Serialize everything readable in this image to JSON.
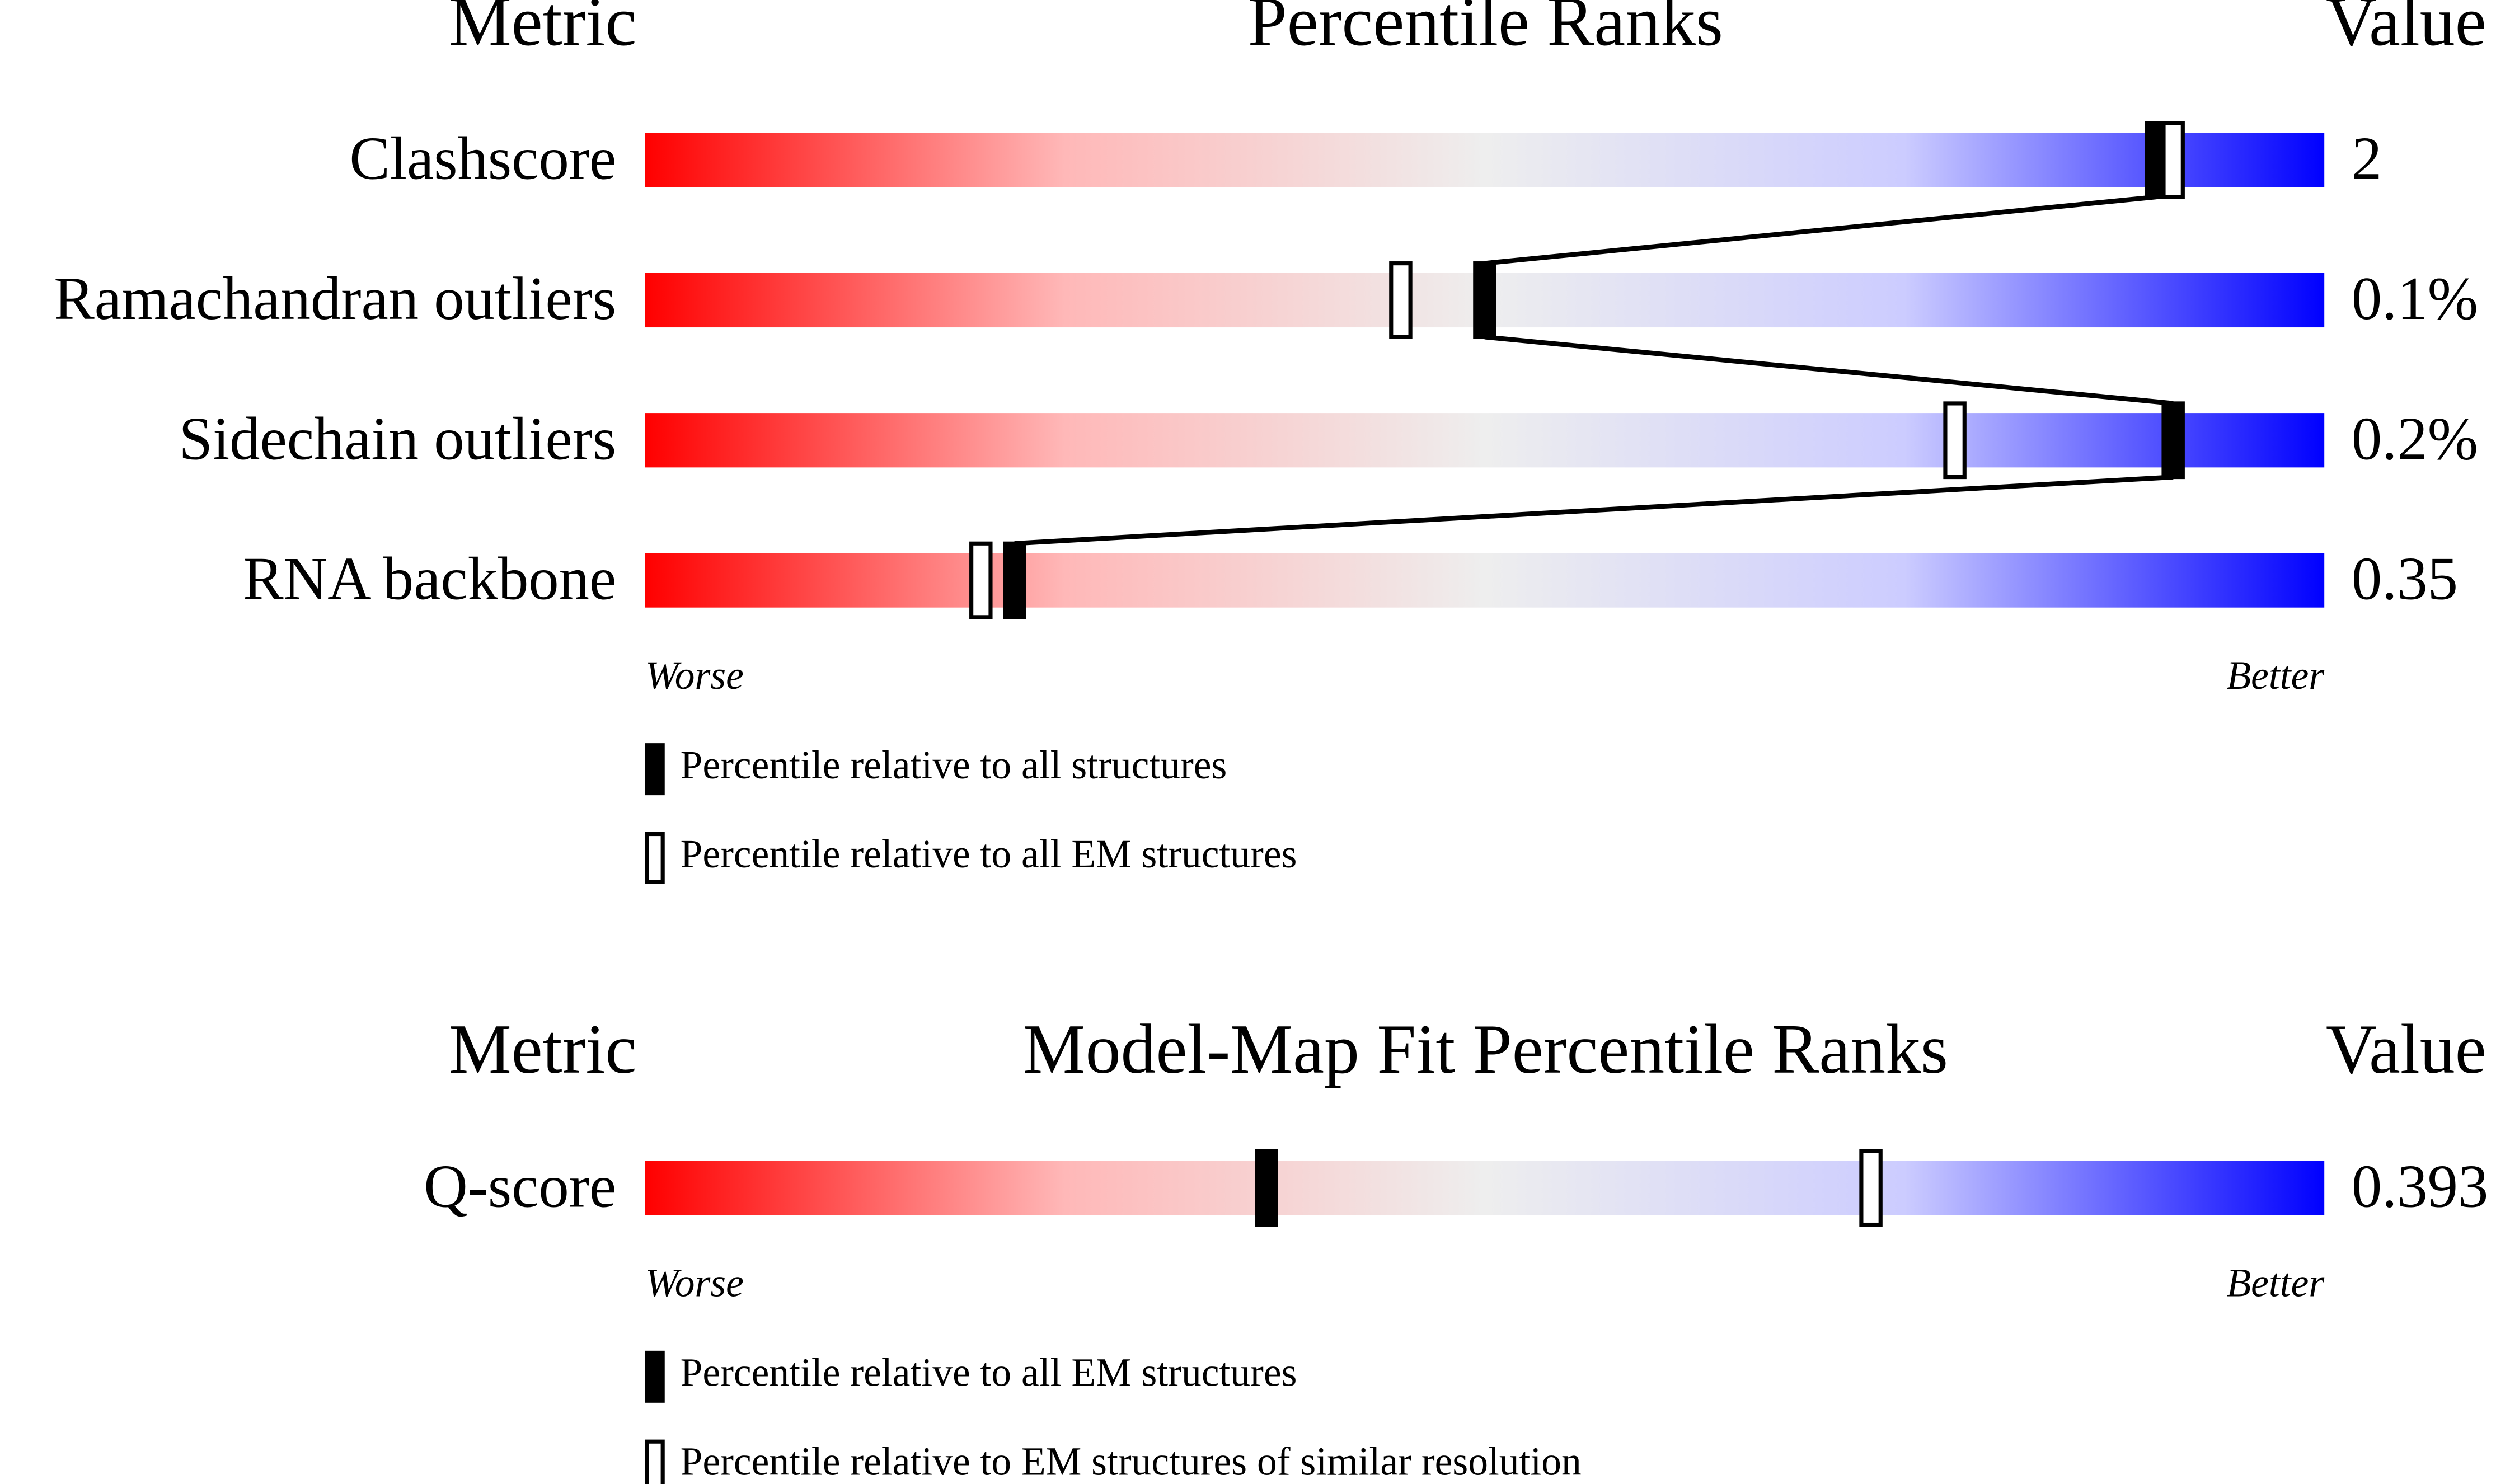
{
  "chart_data": [
    {
      "type": "percentile-slider",
      "metric_header": "Metric",
      "title": "Percentile Ranks",
      "value_header": "Value",
      "categories": [
        "Clashscore",
        "Ramachandran outliers",
        "Sidechain outliers",
        "RNA backbone"
      ],
      "value_texts": [
        "2",
        "0.1%",
        "0.2%",
        "0.35"
      ],
      "series": [
        {
          "name": "Percentile relative to all structures",
          "color": "#000000",
          "values": [
            90,
            50,
            91,
            22
          ]
        },
        {
          "name": "Percentile relative to all EM structures",
          "color": "#ffffff",
          "values": [
            91,
            45,
            78,
            20
          ]
        }
      ],
      "xlim": [
        0,
        100
      ],
      "left_label": "Worse",
      "right_label": "Better"
    },
    {
      "type": "percentile-slider",
      "metric_header": "Metric",
      "title": "Model-Map Fit Percentile Ranks",
      "value_header": "Value",
      "categories": [
        "Q-score"
      ],
      "value_texts": [
        "0.393"
      ],
      "series": [
        {
          "name": "Percentile relative to all EM structures",
          "color": "#000000",
          "values": [
            37
          ]
        },
        {
          "name": "Percentile relative to EM structures of similar resolution",
          "color": "#ffffff",
          "values": [
            73
          ]
        }
      ],
      "xlim": [
        0,
        100
      ],
      "left_label": "Worse",
      "right_label": "Better"
    }
  ]
}
